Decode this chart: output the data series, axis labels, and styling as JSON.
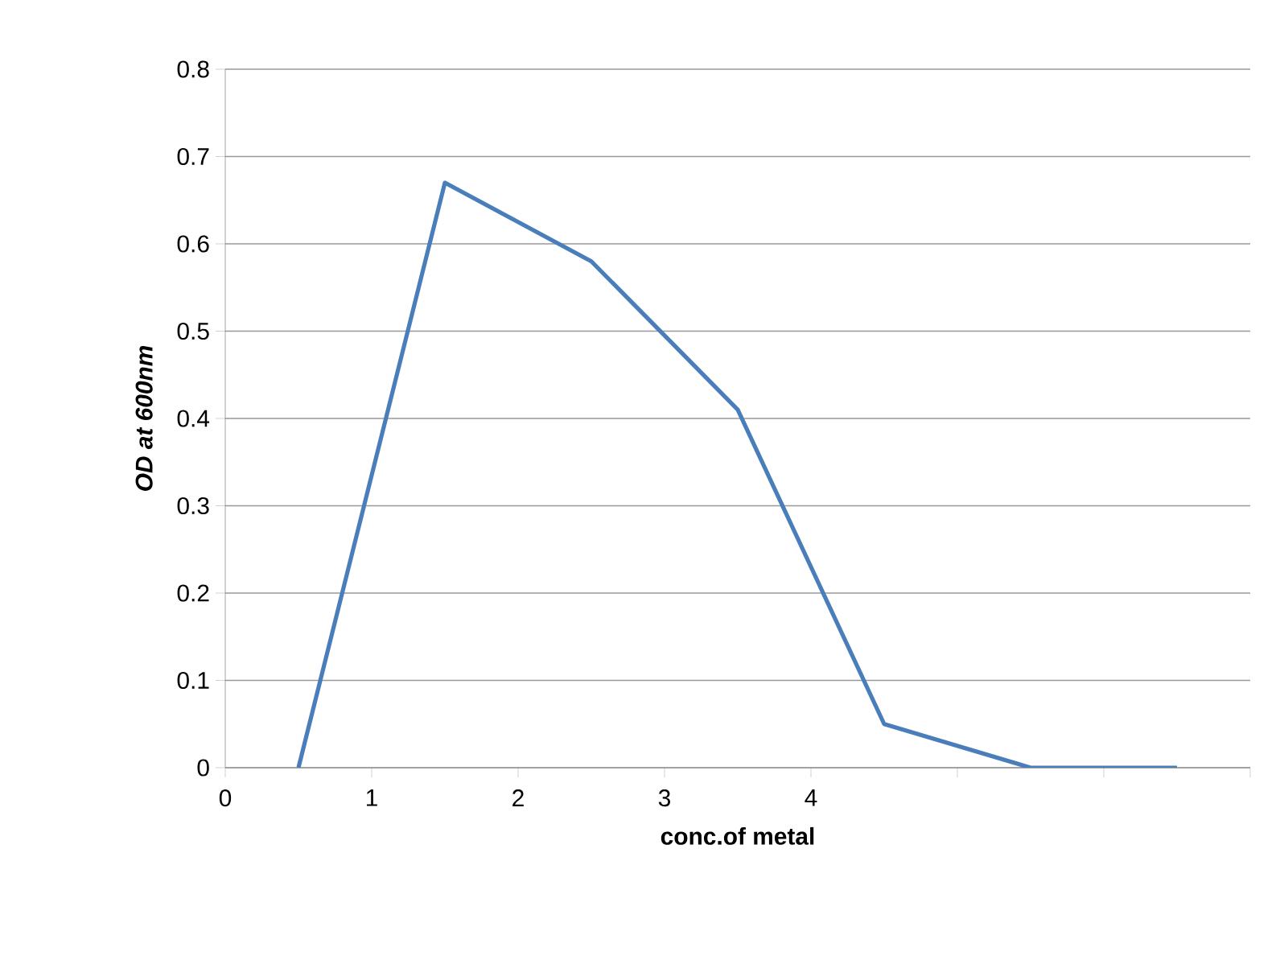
{
  "chart_data": {
    "type": "line",
    "xlabel": "conc.of metal",
    "ylabel": "OD at 600nm",
    "x": [
      0.5,
      1.5,
      2.5,
      3.5,
      4.5,
      5.5,
      6.5
    ],
    "series": [
      {
        "color": "#4a7ebb",
        "values": [
          0,
          0.67,
          0.58,
          0.41,
          0.05,
          0,
          0
        ]
      }
    ],
    "xlim": [
      0,
      7
    ],
    "xticks": [
      0,
      1,
      2,
      3,
      4,
      {
        "value": 5,
        "label": null
      },
      {
        "value": 6,
        "label": null
      },
      {
        "value": 7,
        "label": null
      }
    ],
    "ylim": [
      0,
      0.8
    ],
    "yticks": [
      0,
      0.1,
      0.2,
      0.3,
      0.4,
      0.5,
      0.6,
      0.7,
      0.8
    ],
    "grid": "y",
    "marker": "none",
    "line_style": "solid"
  }
}
